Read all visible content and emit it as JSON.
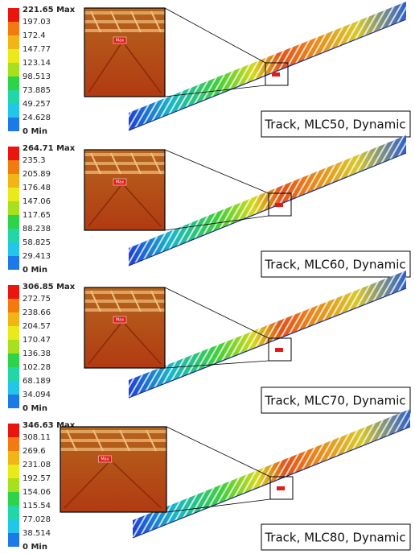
{
  "panels": [
    {
      "legend": [
        "221.65 Max",
        "197.03",
        "172.4",
        "147.77",
        "123.14",
        "98.513",
        "73.885",
        "49.257",
        "24.628",
        "0 Min"
      ],
      "tag": "Max",
      "caption": "Track, MLC50, Dynamic"
    },
    {
      "legend": [
        "264.71 Max",
        "235.3",
        "205.89",
        "176.48",
        "147.06",
        "117.65",
        "88.238",
        "58.825",
        "29.413",
        "0 Min"
      ],
      "tag": "Max",
      "caption": "Track, MLC60, Dynamic"
    },
    {
      "legend": [
        "306.85 Max",
        "272.75",
        "238.66",
        "204.57",
        "170.47",
        "136.38",
        "102.28",
        "68.189",
        "34.094",
        "0 Min"
      ],
      "tag": "Max",
      "caption": "Track, MLC70, Dynamic"
    },
    {
      "legend": [
        "346.63 Max",
        "308.11",
        "269.6",
        "231.08",
        "192.57",
        "154.06",
        "115.54",
        "77.028",
        "38.514",
        "0 Min"
      ],
      "tag": "Max",
      "caption": "Track, MLC80, Dynamic"
    }
  ]
}
